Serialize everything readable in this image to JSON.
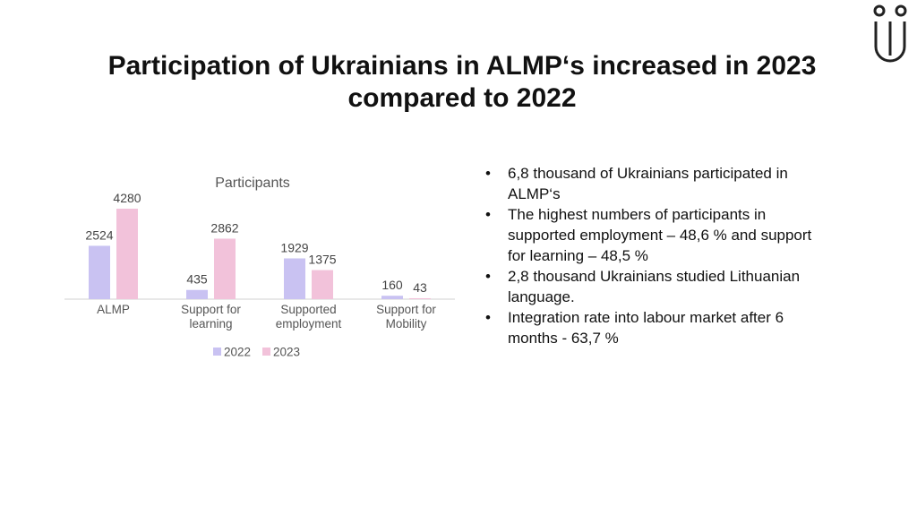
{
  "title": "Participation of Ukrainians in ALMP‘s increased in 2023 compared to 2022",
  "bullets": [
    "6,8 thousand of Ukrainians participated in ALMP‘s",
    "The highest numbers of participants in supported employment – 48,6 % and support for learning – 48,5 %",
    "2,8 thousand Ukrainians studied Lithuanian language.",
    "Integration rate into labour market after 6 months - 63,7 %"
  ],
  "chart_data": {
    "type": "bar",
    "title": "Participants",
    "categories": [
      "ALMP",
      "Support for learning",
      "Supported employment",
      "Support for Mobility"
    ],
    "series": [
      {
        "name": "2022",
        "color": "#c9c2f2",
        "values": [
          2524,
          435,
          1929,
          160
        ]
      },
      {
        "name": "2023",
        "color": "#f2c2da",
        "values": [
          4280,
          2862,
          1375,
          43
        ]
      }
    ],
    "legend": "bottom"
  }
}
